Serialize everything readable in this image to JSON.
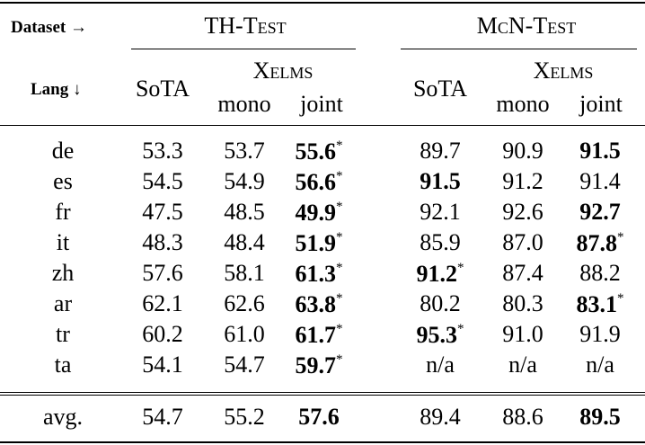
{
  "header": {
    "dataset_label": "Dataset",
    "dataset_arrow": "→",
    "lang_label": "Lang",
    "lang_arrow": "↓",
    "th_test": "TH-Test",
    "mcn_test": "McN-Test",
    "sota": "SoTA",
    "xelms": "Xelms",
    "mono": "mono",
    "joint": "joint"
  },
  "rows": [
    {
      "lang": "de",
      "th": [
        {
          "v": "53.3",
          "b": false,
          "s": ""
        },
        {
          "v": "53.7",
          "b": false,
          "s": ""
        },
        {
          "v": "55.6",
          "b": true,
          "s": "*"
        }
      ],
      "mcn": [
        {
          "v": "89.7",
          "b": false,
          "s": ""
        },
        {
          "v": "90.9",
          "b": false,
          "s": ""
        },
        {
          "v": "91.5",
          "b": true,
          "s": ""
        }
      ]
    },
    {
      "lang": "es",
      "th": [
        {
          "v": "54.5",
          "b": false,
          "s": ""
        },
        {
          "v": "54.9",
          "b": false,
          "s": ""
        },
        {
          "v": "56.6",
          "b": true,
          "s": "*"
        }
      ],
      "mcn": [
        {
          "v": "91.5",
          "b": true,
          "s": ""
        },
        {
          "v": "91.2",
          "b": false,
          "s": ""
        },
        {
          "v": "91.4",
          "b": false,
          "s": ""
        }
      ]
    },
    {
      "lang": "fr",
      "th": [
        {
          "v": "47.5",
          "b": false,
          "s": ""
        },
        {
          "v": "48.5",
          "b": false,
          "s": ""
        },
        {
          "v": "49.9",
          "b": true,
          "s": "*"
        }
      ],
      "mcn": [
        {
          "v": "92.1",
          "b": false,
          "s": ""
        },
        {
          "v": "92.6",
          "b": false,
          "s": ""
        },
        {
          "v": "92.7",
          "b": true,
          "s": ""
        }
      ]
    },
    {
      "lang": "it",
      "th": [
        {
          "v": "48.3",
          "b": false,
          "s": ""
        },
        {
          "v": "48.4",
          "b": false,
          "s": ""
        },
        {
          "v": "51.9",
          "b": true,
          "s": "*"
        }
      ],
      "mcn": [
        {
          "v": "85.9",
          "b": false,
          "s": ""
        },
        {
          "v": "87.0",
          "b": false,
          "s": ""
        },
        {
          "v": "87.8",
          "b": true,
          "s": "*"
        }
      ]
    },
    {
      "lang": "zh",
      "th": [
        {
          "v": "57.6",
          "b": false,
          "s": ""
        },
        {
          "v": "58.1",
          "b": false,
          "s": ""
        },
        {
          "v": "61.3",
          "b": true,
          "s": "*"
        }
      ],
      "mcn": [
        {
          "v": "91.2",
          "b": true,
          "s": "*"
        },
        {
          "v": "87.4",
          "b": false,
          "s": ""
        },
        {
          "v": "88.2",
          "b": false,
          "s": ""
        }
      ]
    },
    {
      "lang": "ar",
      "th": [
        {
          "v": "62.1",
          "b": false,
          "s": ""
        },
        {
          "v": "62.6",
          "b": false,
          "s": ""
        },
        {
          "v": "63.8",
          "b": true,
          "s": "*"
        }
      ],
      "mcn": [
        {
          "v": "80.2",
          "b": false,
          "s": ""
        },
        {
          "v": "80.3",
          "b": false,
          "s": ""
        },
        {
          "v": "83.1",
          "b": true,
          "s": "*"
        }
      ]
    },
    {
      "lang": "tr",
      "th": [
        {
          "v": "60.2",
          "b": false,
          "s": ""
        },
        {
          "v": "61.0",
          "b": false,
          "s": ""
        },
        {
          "v": "61.7",
          "b": true,
          "s": "*"
        }
      ],
      "mcn": [
        {
          "v": "95.3",
          "b": true,
          "s": "*"
        },
        {
          "v": "91.0",
          "b": false,
          "s": ""
        },
        {
          "v": "91.9",
          "b": false,
          "s": ""
        }
      ]
    },
    {
      "lang": "ta",
      "th": [
        {
          "v": "54.1",
          "b": false,
          "s": ""
        },
        {
          "v": "54.7",
          "b": false,
          "s": ""
        },
        {
          "v": "59.7",
          "b": true,
          "s": "*"
        }
      ],
      "mcn": [
        {
          "v": "n/a",
          "b": false,
          "s": ""
        },
        {
          "v": "n/a",
          "b": false,
          "s": ""
        },
        {
          "v": "n/a",
          "b": false,
          "s": ""
        }
      ]
    }
  ],
  "avg": {
    "lang": "avg.",
    "th": [
      {
        "v": "54.7",
        "b": false,
        "s": ""
      },
      {
        "v": "55.2",
        "b": false,
        "s": ""
      },
      {
        "v": "57.6",
        "b": true,
        "s": ""
      }
    ],
    "mcn": [
      {
        "v": "89.4",
        "b": false,
        "s": ""
      },
      {
        "v": "88.6",
        "b": false,
        "s": ""
      },
      {
        "v": "89.5",
        "b": true,
        "s": ""
      }
    ]
  }
}
